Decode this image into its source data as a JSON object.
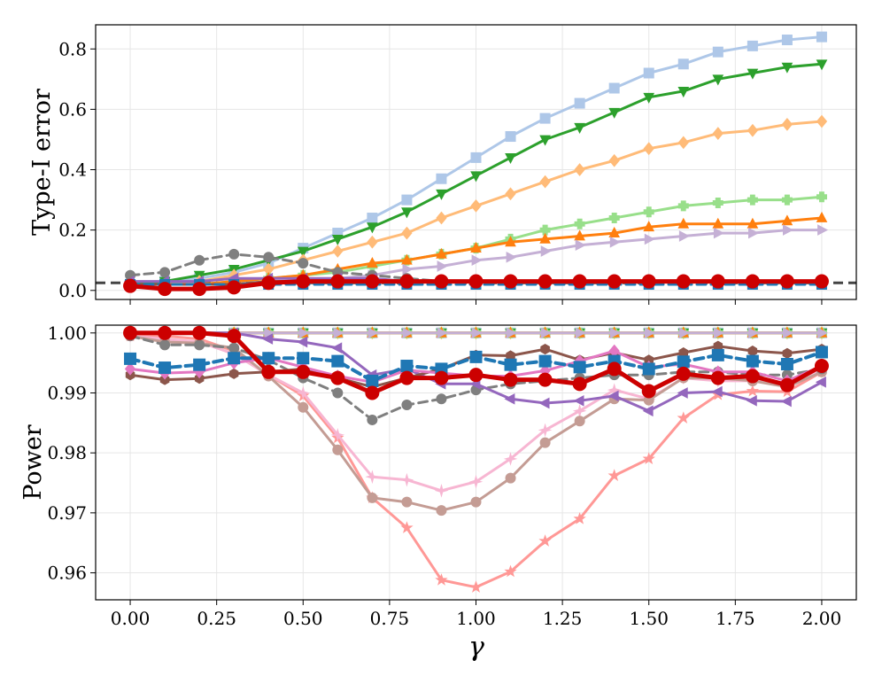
{
  "chart_data": [
    {
      "type": "line",
      "ylabel": "Type-I error",
      "xlabel": "",
      "xlim": [
        -0.1,
        2.1
      ],
      "ylim": [
        -0.03,
        0.88
      ],
      "x_ticks": [
        "0.00",
        "0.25",
        "0.50",
        "0.75",
        "1.00",
        "1.25",
        "1.50",
        "1.75",
        "2.00"
      ],
      "y_ticks": [
        "0.0",
        "0.2",
        "0.4",
        "0.6",
        "0.8"
      ],
      "grid": true,
      "reference_line": {
        "y": 0.025,
        "color": "#444444",
        "style": "dashed"
      },
      "x": [
        0.0,
        0.1,
        0.2,
        0.3,
        0.4,
        0.5,
        0.6,
        0.7,
        0.8,
        0.9,
        1.0,
        1.1,
        1.2,
        1.3,
        1.4,
        1.5,
        1.6,
        1.7,
        1.8,
        1.9,
        2.0
      ],
      "series": [
        {
          "color": "#aec7e8",
          "marker": "square",
          "dash": false,
          "width": 3,
          "values": [
            0.02,
            0.03,
            0.04,
            0.06,
            0.09,
            0.14,
            0.19,
            0.24,
            0.3,
            0.37,
            0.44,
            0.51,
            0.57,
            0.62,
            0.67,
            0.72,
            0.75,
            0.79,
            0.81,
            0.83,
            0.84
          ]
        },
        {
          "color": "#2ca02c",
          "marker": "triangle-down",
          "dash": false,
          "width": 3,
          "values": [
            0.02,
            0.03,
            0.05,
            0.07,
            0.1,
            0.13,
            0.17,
            0.21,
            0.26,
            0.32,
            0.38,
            0.44,
            0.5,
            0.54,
            0.59,
            0.64,
            0.66,
            0.7,
            0.72,
            0.74,
            0.75
          ]
        },
        {
          "color": "#ffbb78",
          "marker": "diamond",
          "dash": false,
          "width": 3,
          "values": [
            0.02,
            0.02,
            0.03,
            0.05,
            0.07,
            0.1,
            0.13,
            0.16,
            0.19,
            0.24,
            0.28,
            0.32,
            0.36,
            0.4,
            0.43,
            0.47,
            0.49,
            0.52,
            0.53,
            0.55,
            0.56
          ]
        },
        {
          "color": "#98df8a",
          "marker": "plus",
          "dash": false,
          "width": 3,
          "values": [
            0.02,
            0.02,
            0.02,
            0.03,
            0.04,
            0.05,
            0.06,
            0.08,
            0.1,
            0.12,
            0.14,
            0.17,
            0.2,
            0.22,
            0.24,
            0.26,
            0.28,
            0.29,
            0.3,
            0.3,
            0.31
          ]
        },
        {
          "color": "#ff7f0e",
          "marker": "triangle-up",
          "dash": false,
          "width": 3,
          "values": [
            0.02,
            0.02,
            0.02,
            0.03,
            0.04,
            0.05,
            0.07,
            0.09,
            0.1,
            0.12,
            0.14,
            0.16,
            0.17,
            0.18,
            0.19,
            0.21,
            0.22,
            0.22,
            0.22,
            0.23,
            0.24
          ]
        },
        {
          "color": "#c5b0d5",
          "marker": "triangle-right",
          "dash": false,
          "width": 3,
          "values": [
            0.02,
            0.02,
            0.02,
            0.02,
            0.03,
            0.03,
            0.04,
            0.05,
            0.07,
            0.08,
            0.1,
            0.11,
            0.13,
            0.15,
            0.16,
            0.17,
            0.18,
            0.19,
            0.19,
            0.2,
            0.2
          ]
        },
        {
          "color": "#7f7f7f",
          "marker": "circle",
          "dash": true,
          "width": 3,
          "values": [
            0.05,
            0.06,
            0.1,
            0.12,
            0.11,
            0.09,
            0.06,
            0.05,
            0.04,
            0.03,
            0.03,
            0.03,
            0.03,
            0.03,
            0.03,
            0.03,
            0.03,
            0.03,
            0.03,
            0.03,
            0.03
          ]
        },
        {
          "color": "#9467bd",
          "marker": "triangle-left",
          "dash": false,
          "width": 3,
          "values": [
            0.03,
            0.03,
            0.03,
            0.04,
            0.04,
            0.04,
            0.04,
            0.04,
            0.03,
            0.03,
            0.03,
            0.03,
            0.03,
            0.03,
            0.03,
            0.03,
            0.03,
            0.03,
            0.03,
            0.03,
            0.03
          ]
        },
        {
          "color": "#8c564b",
          "marker": "hexagon",
          "dash": false,
          "width": 3,
          "values": [
            0.02,
            0.02,
            0.02,
            0.02,
            0.03,
            0.03,
            0.03,
            0.03,
            0.03,
            0.03,
            0.03,
            0.03,
            0.03,
            0.03,
            0.03,
            0.03,
            0.03,
            0.03,
            0.03,
            0.03,
            0.03
          ]
        },
        {
          "color": "#1f77b4",
          "marker": "square",
          "dash": true,
          "width": 3,
          "values": [
            0.02,
            0.02,
            0.02,
            0.02,
            0.02,
            0.02,
            0.02,
            0.02,
            0.02,
            0.02,
            0.02,
            0.02,
            0.02,
            0.02,
            0.02,
            0.02,
            0.02,
            0.02,
            0.02,
            0.02,
            0.02
          ]
        },
        {
          "color": "#cc0000",
          "marker": "circle",
          "dash": false,
          "width": 5,
          "values": [
            0.015,
            0.005,
            0.005,
            0.01,
            0.025,
            0.03,
            0.03,
            0.03,
            0.03,
            0.03,
            0.03,
            0.03,
            0.03,
            0.03,
            0.03,
            0.03,
            0.03,
            0.03,
            0.03,
            0.03,
            0.03
          ]
        }
      ]
    },
    {
      "type": "line",
      "ylabel": "Power",
      "xlabel": "γ",
      "xlim": [
        -0.1,
        2.1
      ],
      "ylim": [
        0.9555,
        1.0013
      ],
      "x_ticks": [
        "0.00",
        "0.25",
        "0.50",
        "0.75",
        "1.00",
        "1.25",
        "1.50",
        "1.75",
        "2.00"
      ],
      "y_ticks": [
        "0.96",
        "0.97",
        "0.98",
        "0.99",
        "1.00"
      ],
      "grid": true,
      "x": [
        0.0,
        0.1,
        0.2,
        0.3,
        0.4,
        0.5,
        0.6,
        0.7,
        0.8,
        0.9,
        1.0,
        1.1,
        1.2,
        1.3,
        1.4,
        1.5,
        1.6,
        1.7,
        1.8,
        1.9,
        2.0
      ],
      "series": [
        {
          "color": "#aec7e8",
          "marker": "square",
          "dash": false,
          "width": 3,
          "values": [
            1.0,
            1.0,
            1.0,
            1.0,
            1.0,
            1.0,
            1.0,
            1.0,
            1.0,
            1.0,
            1.0,
            1.0,
            1.0,
            1.0,
            1.0,
            1.0,
            1.0,
            1.0,
            1.0,
            1.0,
            1.0
          ]
        },
        {
          "color": "#2ca02c",
          "marker": "triangle-down",
          "dash": false,
          "width": 3,
          "values": [
            1.0,
            1.0,
            1.0,
            1.0,
            1.0,
            1.0,
            1.0,
            1.0,
            1.0,
            1.0,
            1.0,
            1.0,
            1.0,
            1.0,
            1.0,
            1.0,
            1.0,
            1.0,
            1.0,
            1.0,
            1.0
          ]
        },
        {
          "color": "#ffbb78",
          "marker": "diamond",
          "dash": false,
          "width": 3,
          "values": [
            1.0,
            1.0,
            1.0,
            1.0,
            1.0,
            1.0,
            1.0,
            1.0,
            1.0,
            1.0,
            1.0,
            1.0,
            1.0,
            1.0,
            1.0,
            1.0,
            1.0,
            1.0,
            1.0,
            1.0,
            1.0
          ]
        },
        {
          "color": "#98df8a",
          "marker": "plus",
          "dash": false,
          "width": 3,
          "values": [
            1.0,
            1.0,
            1.0,
            1.0,
            1.0,
            1.0,
            1.0,
            1.0,
            1.0,
            1.0,
            1.0,
            1.0,
            1.0,
            1.0,
            1.0,
            1.0,
            1.0,
            1.0,
            1.0,
            1.0,
            1.0
          ]
        },
        {
          "color": "#ff7f0e",
          "marker": "triangle-up",
          "dash": false,
          "width": 3,
          "values": [
            1.0,
            1.0,
            1.0,
            1.0,
            1.0,
            1.0,
            1.0,
            1.0,
            1.0,
            1.0,
            1.0,
            1.0,
            1.0,
            1.0,
            1.0,
            1.0,
            1.0,
            1.0,
            1.0,
            1.0,
            1.0
          ]
        },
        {
          "color": "#c5b0d5",
          "marker": "triangle-right",
          "dash": false,
          "width": 3,
          "values": [
            1.0,
            1.0,
            1.0,
            1.0,
            1.0,
            1.0,
            1.0,
            1.0,
            1.0,
            1.0,
            1.0,
            1.0,
            1.0,
            1.0,
            1.0,
            1.0,
            1.0,
            1.0,
            1.0,
            1.0,
            1.0
          ]
        },
        {
          "color": "#ff9896",
          "marker": "star",
          "dash": false,
          "width": 3,
          "values": [
            0.9995,
            0.9995,
            0.999,
            0.997,
            0.993,
            0.9895,
            0.9825,
            0.9725,
            0.9675,
            0.9588,
            0.9576,
            0.9602,
            0.9653,
            0.969,
            0.9762,
            0.979,
            0.9858,
            0.9897,
            0.9903,
            0.9902,
            0.9935
          ]
        },
        {
          "color": "#f7b6d2",
          "marker": "star4",
          "dash": false,
          "width": 3,
          "values": [
            0.9995,
            0.999,
            0.9985,
            0.9965,
            0.993,
            0.99,
            0.983,
            0.976,
            0.9755,
            0.9737,
            0.9752,
            0.979,
            0.9838,
            0.987,
            0.9905,
            0.989,
            0.9925,
            0.992,
            0.992,
            0.9915,
            0.994
          ]
        },
        {
          "color": "#c49c94",
          "marker": "circle",
          "dash": false,
          "width": 3,
          "values": [
            0.9995,
            0.9985,
            0.9983,
            0.9975,
            0.9928,
            0.9876,
            0.9805,
            0.9725,
            0.9718,
            0.9704,
            0.9718,
            0.9758,
            0.9817,
            0.9853,
            0.989,
            0.9888,
            0.9925,
            0.9925,
            0.992,
            0.991,
            0.9935
          ]
        },
        {
          "color": "#7f7f7f",
          "marker": "circle",
          "dash": true,
          "width": 3,
          "values": [
            0.9995,
            0.998,
            0.998,
            0.9975,
            0.9955,
            0.9925,
            0.99,
            0.9855,
            0.988,
            0.989,
            0.9905,
            0.9915,
            0.992,
            0.9925,
            0.993,
            0.993,
            0.9935,
            0.9935,
            0.993,
            0.993,
            0.994
          ]
        },
        {
          "color": "#9467bd",
          "marker": "triangle-left",
          "dash": false,
          "width": 3,
          "values": [
            1.0,
            1.0,
            1.0,
            1.0,
            0.999,
            0.9985,
            0.9975,
            0.993,
            0.994,
            0.9915,
            0.9915,
            0.989,
            0.9883,
            0.9887,
            0.9895,
            0.987,
            0.99,
            0.9902,
            0.9887,
            0.9886,
            0.9918
          ]
        },
        {
          "color": "#8c564b",
          "marker": "hexagon",
          "dash": false,
          "width": 3,
          "values": [
            0.993,
            0.9922,
            0.9924,
            0.9932,
            0.9935,
            0.994,
            0.9925,
            0.991,
            0.9925,
            0.994,
            0.9963,
            0.9962,
            0.9973,
            0.9955,
            0.9967,
            0.9955,
            0.9967,
            0.9978,
            0.997,
            0.9966,
            0.9973
          ]
        },
        {
          "color": "#e377c2",
          "marker": "diamond",
          "dash": false,
          "width": 3,
          "values": [
            0.994,
            0.9933,
            0.9935,
            0.995,
            0.9958,
            0.9943,
            0.9928,
            0.9918,
            0.9938,
            0.9933,
            0.9928,
            0.9928,
            0.9937,
            0.9953,
            0.997,
            0.9943,
            0.9948,
            0.9935,
            0.9935,
            0.992,
            0.9945
          ]
        },
        {
          "color": "#1f77b4",
          "marker": "square",
          "dash": true,
          "width": 4,
          "values": [
            0.9957,
            0.9942,
            0.9947,
            0.9958,
            0.9958,
            0.9958,
            0.9953,
            0.992,
            0.9945,
            0.994,
            0.996,
            0.9947,
            0.9953,
            0.9943,
            0.9953,
            0.994,
            0.9952,
            0.9963,
            0.9953,
            0.9948,
            0.9968
          ]
        },
        {
          "color": "#cc0000",
          "marker": "circle",
          "dash": false,
          "width": 5,
          "values": [
            1.0,
            1.0,
            1.0,
            0.9995,
            0.9935,
            0.9935,
            0.9925,
            0.99,
            0.9925,
            0.9925,
            0.993,
            0.9922,
            0.9922,
            0.9915,
            0.994,
            0.9903,
            0.9932,
            0.9925,
            0.9928,
            0.9913,
            0.9945
          ]
        }
      ]
    }
  ]
}
